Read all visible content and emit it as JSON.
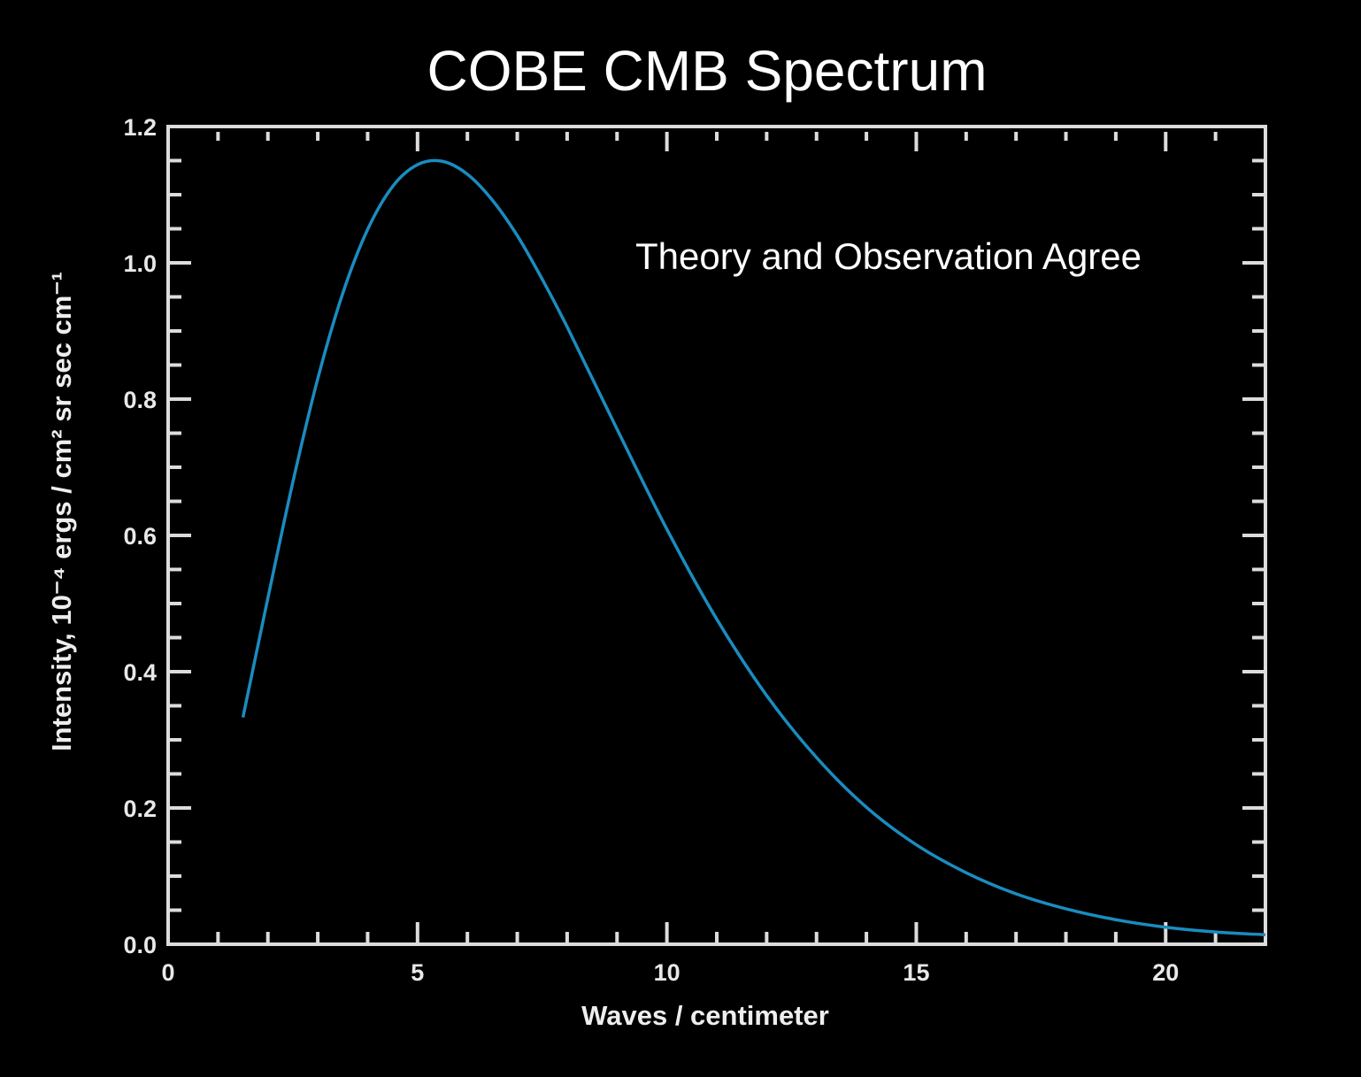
{
  "chart_data": {
    "type": "line",
    "title": "COBE CMB Spectrum",
    "xlabel": "Waves / centimeter",
    "ylabel": "Intensity, 10⁻⁴ ergs / cm² sr sec cm⁻¹",
    "annotation": "Theory and Observation Agree",
    "xlim": [
      0,
      22
    ],
    "ylim": [
      0,
      1.2
    ],
    "x_ticks": [
      "0",
      "5",
      "10",
      "15",
      "20"
    ],
    "y_ticks": [
      "0.0",
      "0.2",
      "0.4",
      "0.6",
      "0.8",
      "1.0",
      "1.2"
    ],
    "grid": false,
    "colors": {
      "background": "#000000",
      "axis": "#dcdcdc",
      "series": "#1a8cc0",
      "text": "#ffffff"
    },
    "series": [
      {
        "x": [
          1.5,
          2,
          2.5,
          3,
          3.5,
          4,
          4.5,
          5,
          5.5,
          6,
          6.5,
          7,
          7.5,
          8,
          9,
          10,
          11,
          12,
          13,
          14,
          15,
          16,
          17,
          18,
          19,
          20,
          21,
          22
        ],
        "y": [
          0.333,
          0.508,
          0.678,
          0.83,
          0.955,
          1.049,
          1.112,
          1.144,
          1.149,
          1.13,
          1.092,
          1.04,
          0.976,
          0.906,
          0.756,
          0.609,
          0.477,
          0.365,
          0.274,
          0.201,
          0.146,
          0.105,
          0.074,
          0.052,
          0.036,
          0.025,
          0.018,
          0.014
        ]
      }
    ]
  }
}
